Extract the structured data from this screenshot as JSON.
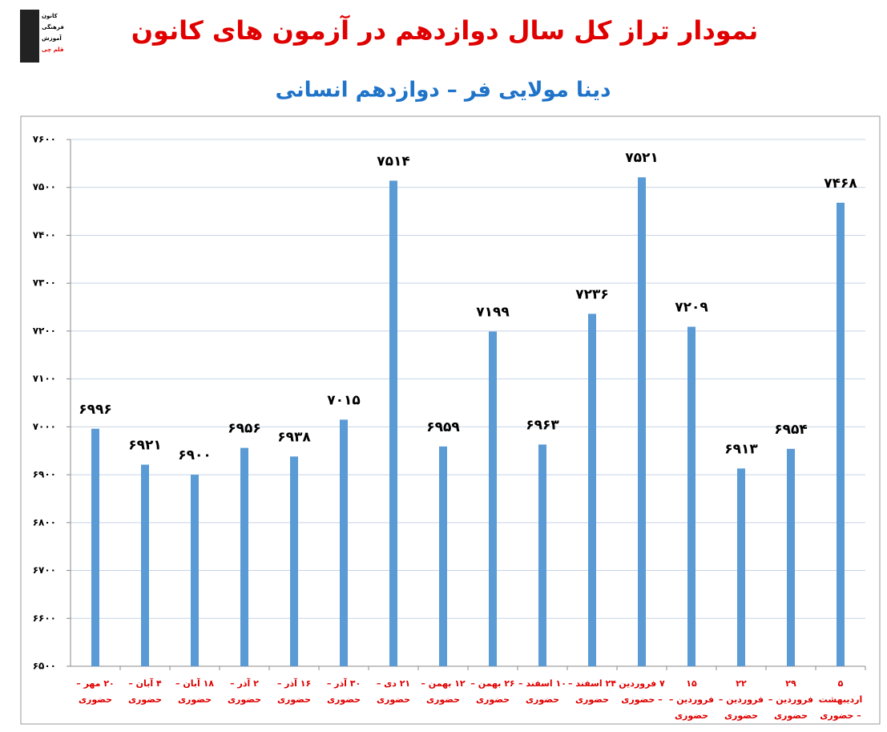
{
  "logo": [
    "کانون",
    "فرهنگی",
    "آموزش",
    "قلم چی"
  ],
  "chart_data": {
    "type": "bar",
    "title": "نمودار تراز کل سال دوازدهم در آزمون های کانون",
    "subtitle": "دینا مولایی فر – دوازدهم انسانی",
    "categories": [
      "۲۰ مهر – حضوری",
      "۴ آبان – حضوری",
      "۱۸ آبان – حضوری",
      "۲ آذر – حضوری",
      "۱۶ آذر – حضوری",
      "۳۰ آذر – حضوری",
      "۲۱ دی – حضوری",
      "۱۲ بهمن – حضوری",
      "۲۶ بهمن – حضوری",
      "۱۰ اسفند – حضوری",
      "۲۴ اسفند – حضوری",
      "۷ فروردین – حضوری",
      "۱۵ فروردین – حضوری",
      "۲۲ فروردین – حضوری",
      "۲۹ فروردین – حضوری",
      "۵ اردیبهشت – حضوری"
    ],
    "values": [
      6996,
      6921,
      6900,
      6956,
      6938,
      7015,
      7514,
      6959,
      7199,
      6963,
      7236,
      7521,
      7209,
      6913,
      6954,
      7468
    ],
    "value_labels": [
      "۶۹۹۶",
      "۶۹۲۱",
      "۶۹۰۰",
      "۶۹۵۶",
      "۶۹۳۸",
      "۷۰۱۵",
      "۷۵۱۴",
      "۶۹۵۹",
      "۷۱۹۹",
      "۶۹۶۳",
      "۷۲۳۶",
      "۷۵۲۱",
      "۷۲۰۹",
      "۶۹۱۳",
      "۶۹۵۴",
      "۷۴۶۸"
    ],
    "color": "#5b9bd5",
    "ylim": [
      6500,
      7600
    ],
    "yticks": [
      {
        "value": 6500,
        "label": "۶۵۰۰"
      },
      {
        "value": 6600,
        "label": "۶۶۰۰"
      },
      {
        "value": 6700,
        "label": "۶۷۰۰"
      },
      {
        "value": 6800,
        "label": "۶۸۰۰"
      },
      {
        "value": 6900,
        "label": "۶۹۰۰"
      },
      {
        "value": 7000,
        "label": "۷۰۰۰"
      },
      {
        "value": 7100,
        "label": "۷۱۰۰"
      },
      {
        "value": 7200,
        "label": "۷۲۰۰"
      },
      {
        "value": 7300,
        "label": "۷۳۰۰"
      },
      {
        "value": 7400,
        "label": "۷۴۰۰"
      },
      {
        "value": 7500,
        "label": "۷۵۰۰"
      },
      {
        "value": 7600,
        "label": "۷۶۰۰"
      }
    ],
    "grid": true
  }
}
